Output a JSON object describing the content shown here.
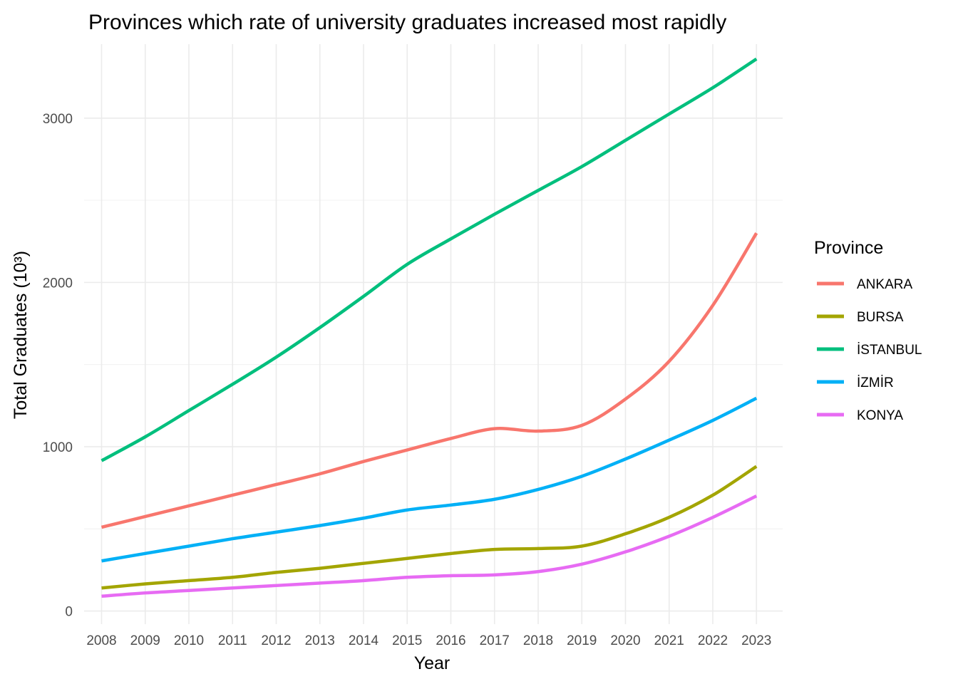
{
  "chart_data": {
    "type": "line",
    "title": "Provinces which rate of university graduates increased most rapidly",
    "xlabel": "Year",
    "ylabel": "Total Graduates (10³)",
    "x": [
      2008,
      2009,
      2010,
      2011,
      2012,
      2013,
      2014,
      2015,
      2016,
      2017,
      2018,
      2019,
      2020,
      2021,
      2022,
      2023
    ],
    "xlim": [
      2007.6,
      2023.6
    ],
    "ylim": [
      -80,
      3450
    ],
    "yticks": [
      0,
      1000,
      2000,
      3000
    ],
    "grid": true,
    "legend": {
      "title": "Province",
      "position": "right"
    },
    "series": [
      {
        "name": "ANKARA",
        "color": "#F8766D",
        "values": [
          510,
          575,
          640,
          705,
          770,
          835,
          910,
          980,
          1050,
          1110,
          1095,
          1130,
          1290,
          1520,
          1860,
          2300
        ]
      },
      {
        "name": "BURSA",
        "color": "#A3A500",
        "values": [
          140,
          165,
          185,
          205,
          235,
          260,
          290,
          320,
          350,
          375,
          380,
          395,
          470,
          570,
          705,
          880
        ]
      },
      {
        "name": "İSTANBUL",
        "color": "#00BF7D",
        "values": [
          915,
          1060,
          1220,
          1380,
          1545,
          1725,
          1915,
          2110,
          2265,
          2415,
          2560,
          2705,
          2865,
          3025,
          3185,
          3360
        ]
      },
      {
        "name": "İZMİR",
        "color": "#00B0F6",
        "values": [
          305,
          350,
          395,
          440,
          480,
          520,
          565,
          615,
          645,
          680,
          740,
          820,
          925,
          1040,
          1160,
          1295
        ]
      },
      {
        "name": "KONYA",
        "color": "#E76BF3",
        "values": [
          90,
          110,
          125,
          140,
          155,
          170,
          185,
          205,
          215,
          220,
          240,
          285,
          360,
          455,
          570,
          700
        ]
      }
    ]
  }
}
